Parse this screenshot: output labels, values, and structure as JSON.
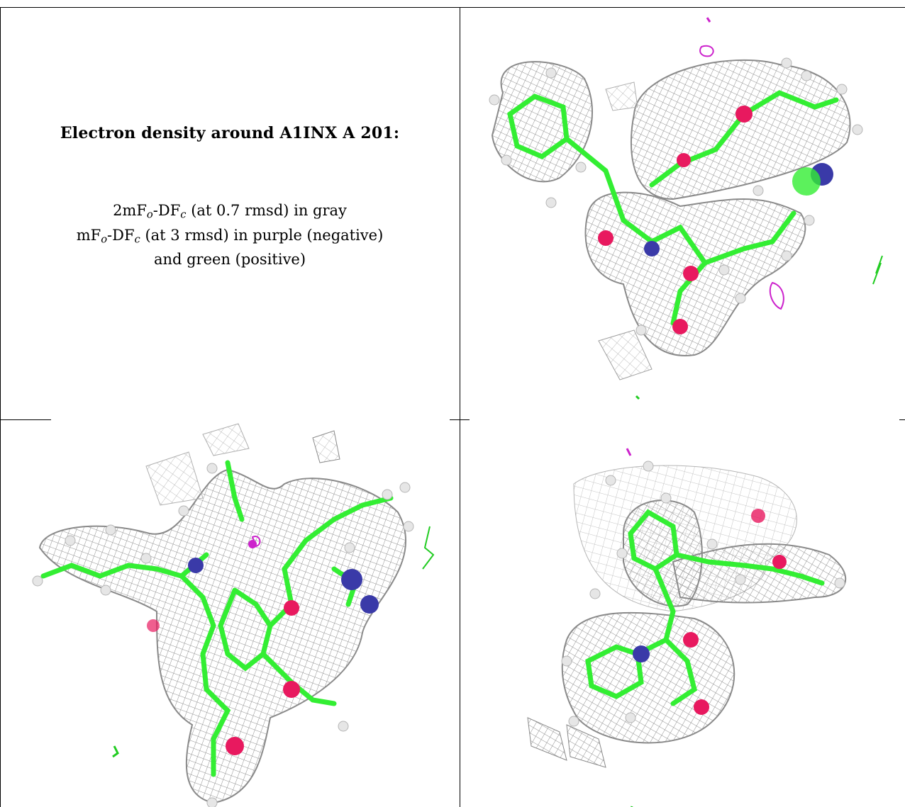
{
  "caption": {
    "title": "Electron density around A1INX A 201:",
    "line1_a": "2mF",
    "line1_sub1": "o",
    "line1_b": "-DF",
    "line1_sub2": "c",
    "line1_c": " (at 0.7 rmsd) in gray",
    "line2_a": "mF",
    "line2_sub1": "o",
    "line2_b": "-DF",
    "line2_sub2": "c",
    "line2_c": " (at 3 rmsd) in purple (negative)",
    "line3": "and green (positive)"
  },
  "colors": {
    "mesh_gray": "#9a9a9a",
    "carbon_green": "#33ee33",
    "oxygen_red": "#e8195f",
    "nitrogen_blue": "#3a3aa8",
    "hydrogen_white": "#e6e6e6",
    "negative_purple": "#cc22cc",
    "positive_green": "#22cc22"
  },
  "panels": [
    {
      "name": "view-1",
      "content": "molecule-density-render"
    },
    {
      "name": "view-2",
      "content": "molecule-density-render"
    },
    {
      "name": "view-3",
      "content": "molecule-density-render"
    }
  ]
}
